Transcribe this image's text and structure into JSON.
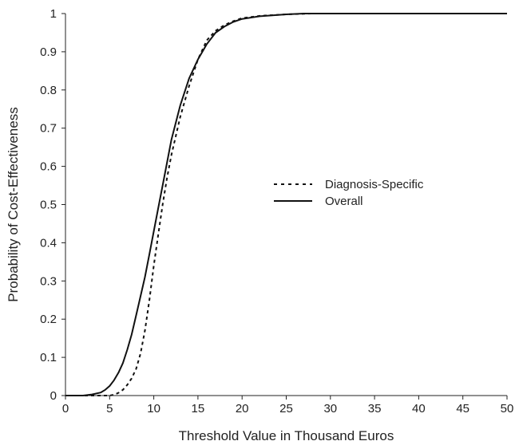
{
  "chart_data": {
    "type": "line",
    "xlabel": "Threshold Value in Thousand Euros",
    "ylabel": "Probability of Cost-Effectiveness",
    "xlim": [
      0,
      50
    ],
    "ylim": [
      0,
      1
    ],
    "xticks": [
      0,
      5,
      10,
      15,
      20,
      25,
      30,
      35,
      40,
      45,
      50
    ],
    "yticks": [
      0,
      0.1,
      0.2,
      0.3,
      0.4,
      0.5,
      0.6,
      0.7,
      0.8,
      0.9,
      1
    ],
    "grid": false,
    "legend_position": "right",
    "series": [
      {
        "name": "Diagnosis-Specific",
        "style": "dashed",
        "color": "#111111",
        "x": [
          0,
          5,
          5.5,
          6,
          6.5,
          7,
          7.5,
          8,
          8.5,
          9,
          9.5,
          10,
          10.5,
          11,
          11.5,
          12,
          13,
          14,
          15,
          16,
          17,
          18,
          19,
          20,
          22,
          25,
          28,
          30,
          50
        ],
        "y": [
          0,
          0,
          0.002,
          0.007,
          0.015,
          0.028,
          0.045,
          0.07,
          0.11,
          0.17,
          0.25,
          0.34,
          0.42,
          0.5,
          0.57,
          0.63,
          0.73,
          0.81,
          0.88,
          0.93,
          0.955,
          0.97,
          0.98,
          0.988,
          0.994,
          0.998,
          1,
          1,
          1
        ]
      },
      {
        "name": "Overall",
        "style": "solid",
        "color": "#111111",
        "x": [
          0,
          2,
          3,
          4,
          4.5,
          5,
          5.5,
          6,
          6.5,
          7,
          7.5,
          8,
          8.5,
          9,
          9.5,
          10,
          10.5,
          11,
          11.5,
          12,
          13,
          14,
          15,
          16,
          17,
          18,
          19,
          20,
          22,
          25,
          27,
          50
        ],
        "y": [
          0,
          0,
          0.003,
          0.008,
          0.015,
          0.025,
          0.04,
          0.06,
          0.085,
          0.12,
          0.16,
          0.21,
          0.26,
          0.31,
          0.37,
          0.43,
          0.49,
          0.55,
          0.61,
          0.67,
          0.76,
          0.83,
          0.88,
          0.92,
          0.95,
          0.966,
          0.978,
          0.986,
          0.993,
          0.998,
          1,
          1
        ]
      }
    ]
  }
}
